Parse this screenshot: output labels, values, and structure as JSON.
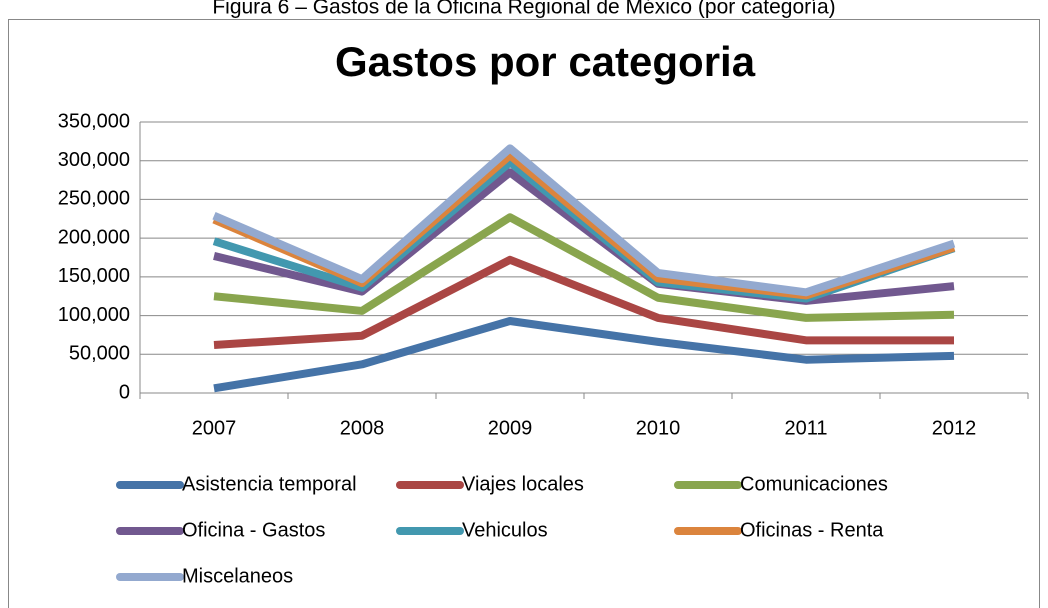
{
  "caption": "Figura 6 – Gastos de la Oficina Regional de México (por categoría)",
  "chart_data": {
    "type": "stacked_line",
    "title": "Gastos por categoria",
    "categories": [
      "2007",
      "2008",
      "2009",
      "2010",
      "2011",
      "2012"
    ],
    "series": [
      {
        "name": "Asistencia temporal",
        "color": "#4573a7",
        "values": [
          6000,
          37000,
          93000,
          66000,
          43000,
          48000
        ]
      },
      {
        "name": "Viajes locales",
        "color": "#aa4644",
        "values": [
          56000,
          37000,
          79000,
          31000,
          25000,
          20000
        ]
      },
      {
        "name": "Comunicaciones",
        "color": "#89a54e",
        "values": [
          63000,
          32000,
          55000,
          26000,
          29000,
          33000
        ]
      },
      {
        "name": "Oficina - Gastos",
        "color": "#71588f",
        "values": [
          52000,
          25000,
          58000,
          18000,
          22000,
          37000
        ]
      },
      {
        "name": "Vehiculos",
        "color": "#4298af",
        "values": [
          19000,
          5000,
          13000,
          2000,
          3000,
          49000
        ]
      },
      {
        "name": "Oficinas - Renta",
        "color": "#db843d",
        "values": [
          28000,
          6000,
          9000,
          5000,
          4000,
          1000
        ]
      },
      {
        "name": "Miscelaneos",
        "color": "#93a9cf",
        "values": [
          5000,
          5000,
          9000,
          7000,
          4000,
          5000
        ]
      }
    ],
    "ylim": [
      0,
      350000
    ],
    "yticks": [
      0,
      {
        "value": 50000,
        "label": "50,000"
      },
      {
        "value": 100000,
        "label": "100,000"
      },
      {
        "value": 150000,
        "label": "150,000"
      },
      {
        "value": 200000,
        "label": "200,000"
      },
      {
        "value": 250000,
        "label": "250,000"
      },
      {
        "value": 300000,
        "label": "300,000"
      },
      {
        "value": 350000,
        "label": "350,000"
      }
    ],
    "grid": true,
    "legend": "bottom"
  }
}
